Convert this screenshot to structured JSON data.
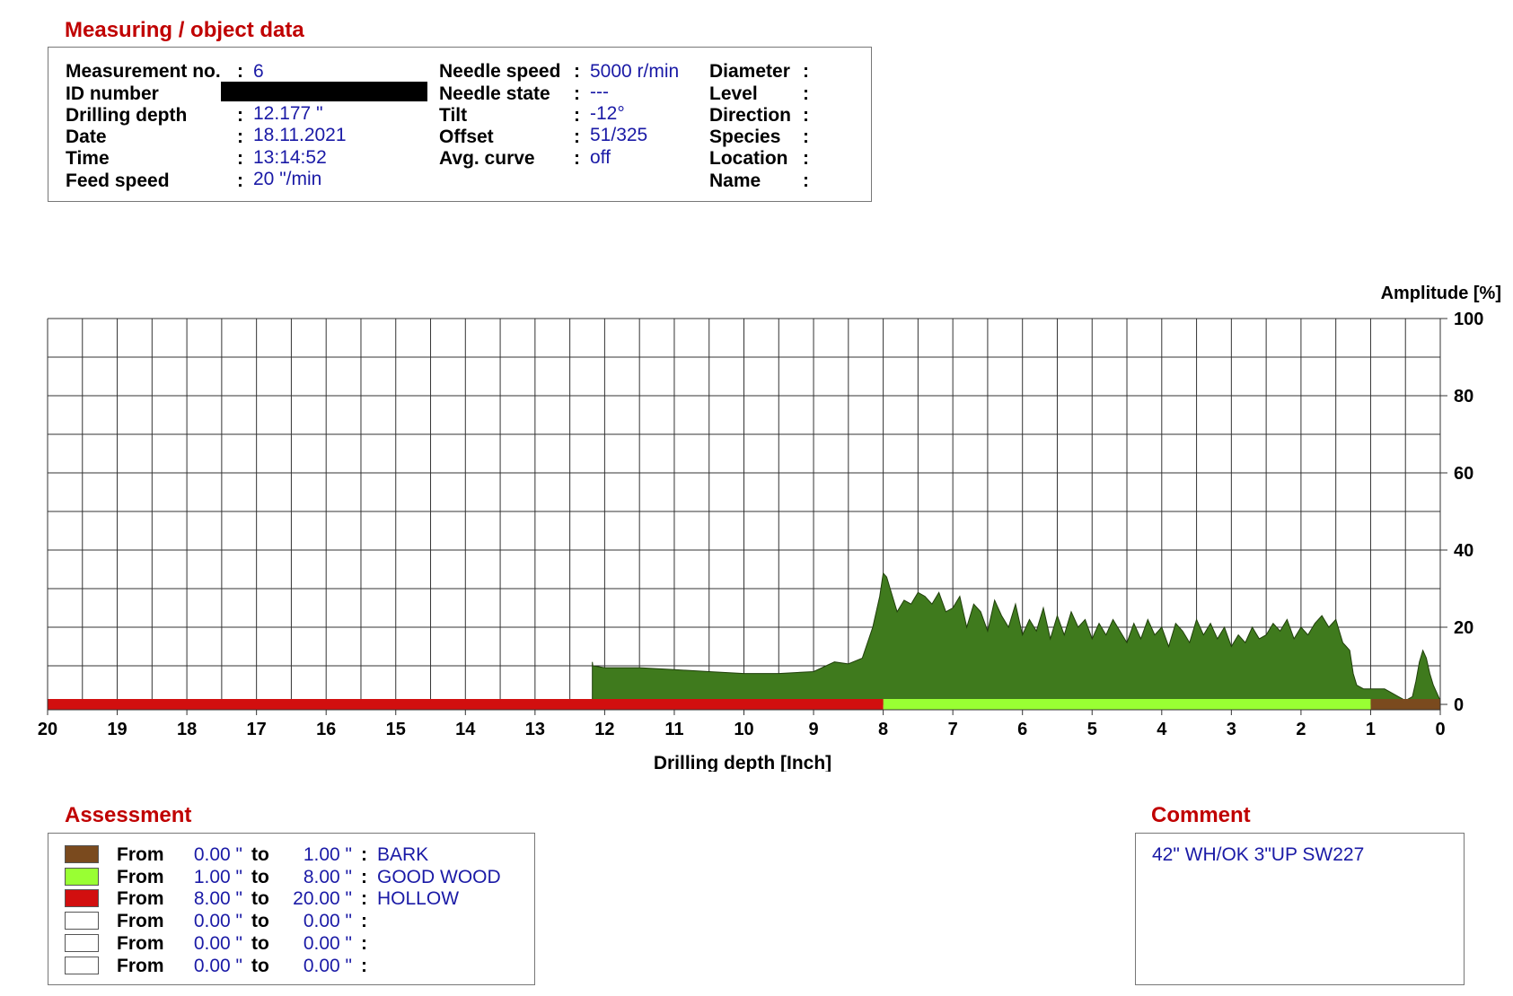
{
  "header": {
    "title": "Measuring / object data",
    "col1": [
      {
        "label": "Measurement no.",
        "value": "6"
      },
      {
        "label": "ID number",
        "value": "",
        "redacted": true
      },
      {
        "label": "Drilling depth",
        "value": "12.177 \""
      },
      {
        "label": "Date",
        "value": "18.11.2021"
      },
      {
        "label": "Time",
        "value": "13:14:52"
      },
      {
        "label": "Feed speed",
        "value": "20 \"/min"
      }
    ],
    "col2": [
      {
        "label": "Needle speed",
        "value": "5000 r/min"
      },
      {
        "label": "Needle state",
        "value": "---"
      },
      {
        "label": "Tilt",
        "value": "-12°"
      },
      {
        "label": "Offset",
        "value": "51/325"
      },
      {
        "label": "Avg. curve",
        "value": "off"
      }
    ],
    "col3": [
      {
        "label": "Diameter",
        "value": ""
      },
      {
        "label": "Level",
        "value": ""
      },
      {
        "label": "Direction",
        "value": ""
      },
      {
        "label": "Species",
        "value": ""
      },
      {
        "label": "Location",
        "value": ""
      },
      {
        "label": "Name",
        "value": ""
      }
    ]
  },
  "chart_data": {
    "type": "area",
    "xlabel": "Drilling depth [Inch]",
    "ylabel": "Amplitude [%]",
    "xlim": [
      20,
      0
    ],
    "ylim": [
      0,
      100
    ],
    "x_ticks": [
      20,
      19,
      18,
      17,
      16,
      15,
      14,
      13,
      12,
      11,
      10,
      9,
      8,
      7,
      6,
      5,
      4,
      3,
      2,
      1,
      0
    ],
    "y_ticks": [
      0,
      20,
      40,
      60,
      80,
      100
    ],
    "grid": true,
    "series": [
      {
        "fill": "#3f7a1d",
        "x": [
          0,
          0.05,
          0.1,
          0.15,
          0.2,
          0.25,
          0.3,
          0.35,
          0.4,
          0.5,
          0.6,
          0.7,
          0.8,
          0.9,
          1.0,
          1.1,
          1.2,
          1.25,
          1.3,
          1.35,
          1.4,
          1.5,
          1.6,
          1.7,
          1.8,
          1.9,
          2.0,
          2.1,
          2.2,
          2.3,
          2.4,
          2.5,
          2.6,
          2.7,
          2.8,
          2.9,
          3.0,
          3.1,
          3.2,
          3.3,
          3.4,
          3.5,
          3.6,
          3.7,
          3.8,
          3.9,
          4.0,
          4.1,
          4.2,
          4.3,
          4.4,
          4.5,
          4.6,
          4.7,
          4.8,
          4.9,
          5.0,
          5.1,
          5.2,
          5.3,
          5.4,
          5.5,
          5.6,
          5.7,
          5.8,
          5.9,
          6.0,
          6.1,
          6.2,
          6.3,
          6.4,
          6.5,
          6.6,
          6.7,
          6.8,
          6.9,
          7.0,
          7.1,
          7.2,
          7.3,
          7.4,
          7.5,
          7.6,
          7.7,
          7.8,
          7.9,
          7.95,
          8.0,
          8.05,
          8.15,
          8.3,
          8.5,
          8.7,
          9.0,
          9.5,
          10.0,
          10.5,
          11.0,
          11.5,
          12.0,
          12.17,
          12.177
        ],
        "y": [
          1,
          3,
          5,
          8,
          12,
          14,
          11,
          6,
          2,
          1,
          2,
          3,
          4,
          4,
          4,
          4,
          5,
          8,
          14,
          15,
          16,
          22,
          20,
          23,
          21,
          18,
          20,
          17,
          22,
          19,
          21,
          18,
          17,
          20,
          16,
          18,
          15,
          20,
          17,
          21,
          18,
          22,
          16,
          19,
          21,
          15,
          20,
          18,
          22,
          17,
          21,
          16,
          19,
          22,
          18,
          21,
          17,
          22,
          20,
          24,
          18,
          23,
          17,
          25,
          19,
          22,
          18,
          26,
          20,
          23,
          27,
          19,
          24,
          26,
          20,
          28,
          25,
          24,
          29,
          26,
          28,
          29,
          26,
          27,
          24,
          30,
          33,
          34,
          28,
          20,
          12,
          10.5,
          11,
          8.5,
          8,
          8,
          8.5,
          9,
          9.5,
          9.5,
          10,
          11
        ]
      }
    ],
    "zones": [
      {
        "from": 0.0,
        "to": 1.0,
        "color": "#7a4a1e"
      },
      {
        "from": 1.0,
        "to": 8.0,
        "color": "#99ff33"
      },
      {
        "from": 8.0,
        "to": 20.0,
        "color": "#d20f0f"
      }
    ]
  },
  "assessment": {
    "title": "Assessment",
    "from_label": "From",
    "to_label": "to",
    "rows": [
      {
        "color": "#7a4a1e",
        "from": "0.00 \"",
        "to": "1.00 \"",
        "name": "BARK"
      },
      {
        "color": "#99ff33",
        "from": "1.00 \"",
        "to": "8.00 \"",
        "name": "GOOD WOOD"
      },
      {
        "color": "#d20f0f",
        "from": "8.00 \"",
        "to": "20.00 \"",
        "name": "HOLLOW"
      },
      {
        "color": "#ffffff",
        "from": "0.00 \"",
        "to": "0.00 \"",
        "name": ""
      },
      {
        "color": "#ffffff",
        "from": "0.00 \"",
        "to": "0.00 \"",
        "name": ""
      },
      {
        "color": "#ffffff",
        "from": "0.00 \"",
        "to": "0.00 \"",
        "name": ""
      }
    ]
  },
  "comment": {
    "title": "Comment",
    "text": "42\" WH/OK 3\"UP SW227"
  }
}
